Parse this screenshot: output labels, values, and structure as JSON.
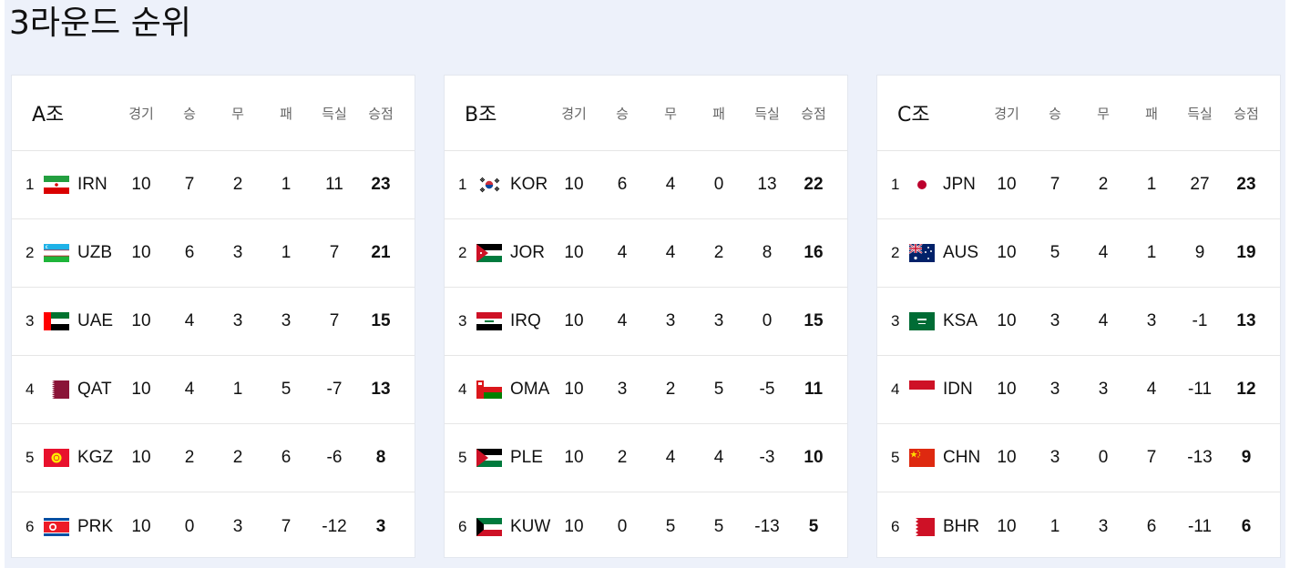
{
  "page_title": "3라운드 순위",
  "columns": [
    "경기",
    "승",
    "무",
    "패",
    "득실",
    "승점"
  ],
  "groups": [
    {
      "name": "A조",
      "teams": [
        {
          "rank": "1",
          "flag": "iran-flag-icon",
          "code": "IRN",
          "played": "10",
          "won": "7",
          "drawn": "2",
          "lost": "1",
          "gd": "11",
          "points": "23"
        },
        {
          "rank": "2",
          "flag": "uzbekistan-flag-icon",
          "code": "UZB",
          "played": "10",
          "won": "6",
          "drawn": "3",
          "lost": "1",
          "gd": "7",
          "points": "21"
        },
        {
          "rank": "3",
          "flag": "uae-flag-icon",
          "code": "UAE",
          "played": "10",
          "won": "4",
          "drawn": "3",
          "lost": "3",
          "gd": "7",
          "points": "15"
        },
        {
          "rank": "4",
          "flag": "qatar-flag-icon",
          "code": "QAT",
          "played": "10",
          "won": "4",
          "drawn": "1",
          "lost": "5",
          "gd": "-7",
          "points": "13"
        },
        {
          "rank": "5",
          "flag": "kyrgyzstan-flag-icon",
          "code": "KGZ",
          "played": "10",
          "won": "2",
          "drawn": "2",
          "lost": "6",
          "gd": "-6",
          "points": "8"
        },
        {
          "rank": "6",
          "flag": "north-korea-flag-icon",
          "code": "PRK",
          "played": "10",
          "won": "0",
          "drawn": "3",
          "lost": "7",
          "gd": "-12",
          "points": "3"
        }
      ]
    },
    {
      "name": "B조",
      "teams": [
        {
          "rank": "1",
          "flag": "south-korea-flag-icon",
          "code": "KOR",
          "played": "10",
          "won": "6",
          "drawn": "4",
          "lost": "0",
          "gd": "13",
          "points": "22"
        },
        {
          "rank": "2",
          "flag": "jordan-flag-icon",
          "code": "JOR",
          "played": "10",
          "won": "4",
          "drawn": "4",
          "lost": "2",
          "gd": "8",
          "points": "16"
        },
        {
          "rank": "3",
          "flag": "iraq-flag-icon",
          "code": "IRQ",
          "played": "10",
          "won": "4",
          "drawn": "3",
          "lost": "3",
          "gd": "0",
          "points": "15"
        },
        {
          "rank": "4",
          "flag": "oman-flag-icon",
          "code": "OMA",
          "played": "10",
          "won": "3",
          "drawn": "2",
          "lost": "5",
          "gd": "-5",
          "points": "11"
        },
        {
          "rank": "5",
          "flag": "palestine-flag-icon",
          "code": "PLE",
          "played": "10",
          "won": "2",
          "drawn": "4",
          "lost": "4",
          "gd": "-3",
          "points": "10"
        },
        {
          "rank": "6",
          "flag": "kuwait-flag-icon",
          "code": "KUW",
          "played": "10",
          "won": "0",
          "drawn": "5",
          "lost": "5",
          "gd": "-13",
          "points": "5"
        }
      ]
    },
    {
      "name": "C조",
      "teams": [
        {
          "rank": "1",
          "flag": "japan-flag-icon",
          "code": "JPN",
          "played": "10",
          "won": "7",
          "drawn": "2",
          "lost": "1",
          "gd": "27",
          "points": "23"
        },
        {
          "rank": "2",
          "flag": "australia-flag-icon",
          "code": "AUS",
          "played": "10",
          "won": "5",
          "drawn": "4",
          "lost": "1",
          "gd": "9",
          "points": "19"
        },
        {
          "rank": "3",
          "flag": "saudi-arabia-flag-icon",
          "code": "KSA",
          "played": "10",
          "won": "3",
          "drawn": "4",
          "lost": "3",
          "gd": "-1",
          "points": "13"
        },
        {
          "rank": "4",
          "flag": "indonesia-flag-icon",
          "code": "IDN",
          "played": "10",
          "won": "3",
          "drawn": "3",
          "lost": "4",
          "gd": "-11",
          "points": "12"
        },
        {
          "rank": "5",
          "flag": "china-flag-icon",
          "code": "CHN",
          "played": "10",
          "won": "3",
          "drawn": "0",
          "lost": "7",
          "gd": "-13",
          "points": "9"
        },
        {
          "rank": "6",
          "flag": "bahrain-flag-icon",
          "code": "BHR",
          "played": "10",
          "won": "1",
          "drawn": "3",
          "lost": "6",
          "gd": "-11",
          "points": "6"
        }
      ]
    }
  ]
}
